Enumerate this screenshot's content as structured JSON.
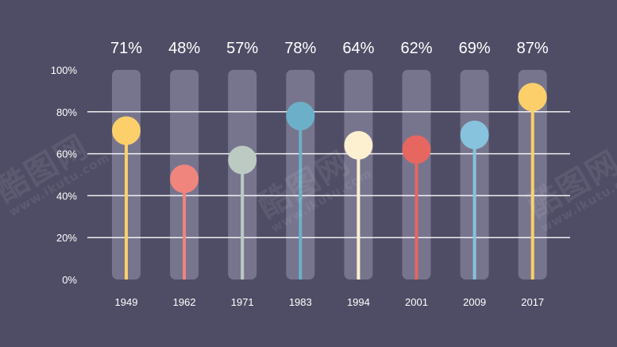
{
  "chart_data": {
    "type": "lollipop",
    "categories": [
      "1949",
      "1962",
      "1971",
      "1983",
      "1994",
      "2001",
      "2009",
      "2017"
    ],
    "values": [
      71,
      48,
      57,
      78,
      64,
      62,
      69,
      87
    ],
    "value_labels": [
      "71%",
      "48%",
      "57%",
      "78%",
      "64%",
      "62%",
      "69%",
      "87%"
    ],
    "ylim": [
      0,
      100
    ],
    "yticks": [
      0,
      20,
      40,
      60,
      80,
      100
    ],
    "ytick_labels": [
      "0%",
      "20%",
      "40%",
      "60%",
      "80%",
      "100%"
    ],
    "grid": true,
    "colors": [
      "#fccf6a",
      "#f0857d",
      "#bccac3",
      "#6bb0c8",
      "#fdf0d0",
      "#e6675f",
      "#87c3dc",
      "#fccf6a"
    ]
  },
  "watermark": {
    "text": "酷图网",
    "url": "www.ikutu.com"
  },
  "style": {
    "background": "#4f4d65",
    "track": "#77758d",
    "grid": "#ffffff",
    "text": "#ffffff"
  }
}
